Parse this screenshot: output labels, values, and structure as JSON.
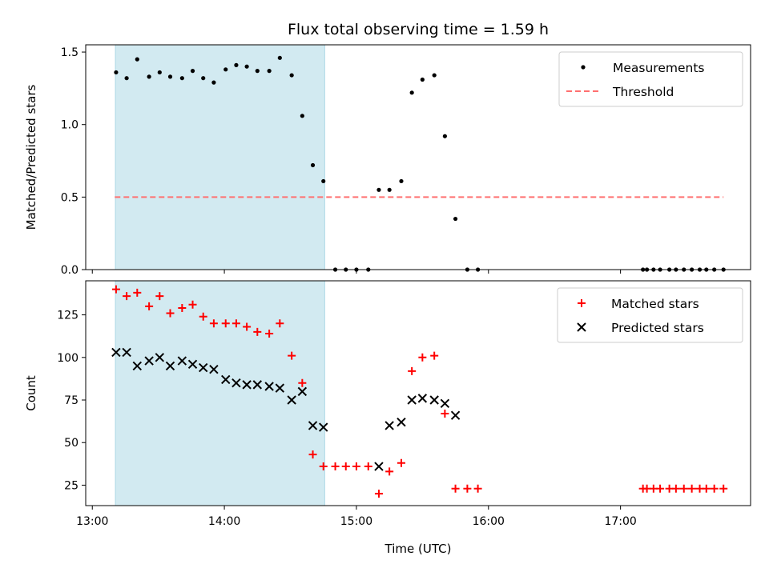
{
  "title": "Flux total observing time = 1.59 h",
  "xlabel": "Time (UTC)",
  "x_ticks": [
    "13:00",
    "14:00",
    "15:00",
    "16:00",
    "17:00"
  ],
  "x_tick_hours": [
    13,
    14,
    15,
    16,
    17
  ],
  "xlim_hours": [
    12.95,
    17.985
  ],
  "shaded_interval_hours": [
    13.175,
    14.76
  ],
  "colors": {
    "shade": "#add8e6",
    "threshold": "#ff7070",
    "matched": "#ff0000",
    "predicted": "#000000",
    "measurement": "#000000"
  },
  "chart_data": [
    {
      "type": "scatter",
      "panel": "top",
      "ylabel": "Matched/Predicted stars",
      "ylim": [
        0,
        1.55
      ],
      "y_ticks": [
        "0.0",
        "0.5",
        "1.0",
        "1.5"
      ],
      "y_tick_values": [
        0,
        0.5,
        1.0,
        1.5
      ],
      "legend_position": "top-right",
      "threshold": {
        "name": "Threshold",
        "y": 0.5,
        "x_range": [
          13.17,
          17.78
        ]
      },
      "series": [
        {
          "name": "Measurements",
          "x": [
            13.18,
            13.26,
            13.34,
            13.43,
            13.51,
            13.59,
            13.68,
            13.76,
            13.84,
            13.92,
            14.01,
            14.09,
            14.17,
            14.25,
            14.34,
            14.42,
            14.51,
            14.59,
            14.67,
            14.75,
            14.84,
            14.92,
            15.0,
            15.09,
            15.17,
            15.25,
            15.34,
            15.42,
            15.5,
            15.59,
            15.67,
            15.75,
            15.84,
            15.92,
            17.17,
            17.2,
            17.25,
            17.3,
            17.37,
            17.42,
            17.48,
            17.54,
            17.6,
            17.65,
            17.71,
            17.78
          ],
          "y": [
            1.36,
            1.32,
            1.45,
            1.33,
            1.36,
            1.33,
            1.32,
            1.37,
            1.32,
            1.29,
            1.38,
            1.41,
            1.4,
            1.37,
            1.37,
            1.46,
            1.34,
            1.06,
            0.72,
            0.61,
            0.0,
            0.0,
            0.0,
            0.0,
            0.55,
            0.55,
            0.61,
            1.22,
            1.31,
            1.34,
            0.92,
            0.35,
            0.0,
            0.0,
            0.0,
            0.0,
            0.0,
            0.0,
            0.0,
            0.0,
            0.0,
            0.0,
            0.0,
            0.0,
            0.0,
            0.0
          ]
        }
      ]
    },
    {
      "type": "scatter",
      "panel": "bottom",
      "ylabel": "Count",
      "ylim": [
        13,
        145
      ],
      "y_ticks": [
        "25",
        "50",
        "75",
        "100",
        "125"
      ],
      "y_tick_values": [
        25,
        50,
        75,
        100,
        125
      ],
      "legend_position": "top-right",
      "series": [
        {
          "name": "Matched stars",
          "marker": "plus",
          "x": [
            13.18,
            13.26,
            13.34,
            13.43,
            13.51,
            13.59,
            13.68,
            13.76,
            13.84,
            13.92,
            14.01,
            14.09,
            14.17,
            14.25,
            14.34,
            14.42,
            14.51,
            14.59,
            14.67,
            14.75,
            14.84,
            14.92,
            15.0,
            15.09,
            15.17,
            15.25,
            15.34,
            15.42,
            15.5,
            15.59,
            15.67,
            15.75,
            15.84,
            15.92,
            17.17,
            17.2,
            17.25,
            17.3,
            17.37,
            17.42,
            17.48,
            17.54,
            17.6,
            17.65,
            17.71,
            17.78
          ],
          "y": [
            140,
            136,
            138,
            130,
            136,
            126,
            129,
            131,
            124,
            120,
            120,
            120,
            118,
            115,
            114,
            120,
            101,
            85,
            43,
            36,
            36,
            36,
            36,
            36,
            20,
            33,
            38,
            92,
            100,
            101,
            67,
            23,
            23,
            23,
            23,
            23,
            23,
            23,
            23,
            23,
            23,
            23,
            23,
            23,
            23,
            23
          ]
        },
        {
          "name": "Predicted stars",
          "marker": "x",
          "x": [
            13.18,
            13.26,
            13.34,
            13.43,
            13.51,
            13.59,
            13.68,
            13.76,
            13.84,
            13.92,
            14.01,
            14.09,
            14.17,
            14.25,
            14.34,
            14.42,
            14.51,
            14.59,
            14.67,
            14.75,
            15.17,
            15.25,
            15.34,
            15.42,
            15.5,
            15.59,
            15.67,
            15.75
          ],
          "y": [
            103,
            103,
            95,
            98,
            100,
            95,
            98,
            96,
            94,
            93,
            87,
            85,
            84,
            84,
            83,
            82,
            75,
            80,
            60,
            59,
            36,
            60,
            62,
            75,
            76,
            75,
            73,
            66
          ]
        }
      ]
    }
  ]
}
